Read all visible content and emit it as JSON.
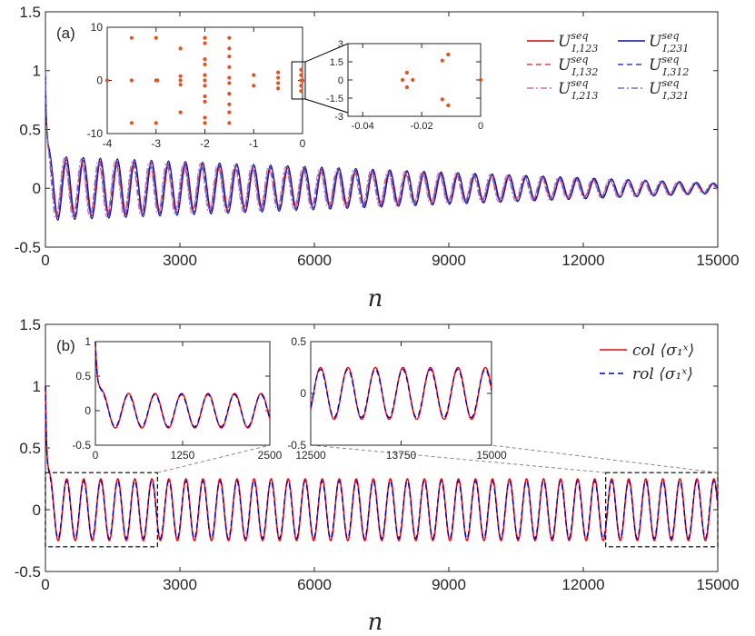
{
  "chart_data": [
    {
      "type": "line",
      "panel_label": "(a)",
      "xlabel": "n",
      "xlim": [
        0,
        15000
      ],
      "ylim": [
        -0.5,
        1.5
      ],
      "xticks": [
        "0",
        "3000",
        "6000",
        "9000",
        "12000",
        "15000"
      ],
      "yticks": [
        "-0.5",
        "0",
        "0.5",
        "1",
        "1.5"
      ],
      "legend_position": "top-right",
      "series": [
        {
          "name": "U_{I,123}^{seq}",
          "color": "#e00000",
          "style": "solid"
        },
        {
          "name": "U_{I,132}^{seq}",
          "color": "#e84040",
          "style": "dashed"
        },
        {
          "name": "U_{I,213}^{seq}",
          "color": "#d070a0",
          "style": "dashdot"
        },
        {
          "name": "U_{I,231}^{seq}",
          "color": "#1010a0",
          "style": "solid"
        },
        {
          "name": "U_{I,312}^{seq}",
          "color": "#3040e0",
          "style": "dashed"
        },
        {
          "name": "U_{I,321}^{seq}",
          "color": "#7070d0",
          "style": "dashdot"
        }
      ],
      "signal_model": {
        "initial": 1.0,
        "period": 380,
        "amplitude_start": 0.25,
        "amplitude_end": 0.04
      },
      "insets": [
        {
          "type": "scatter",
          "xlim": [
            -4,
            0
          ],
          "ylim": [
            -10,
            10
          ],
          "xticks": [
            "-4",
            "-3",
            "-2",
            "-1",
            "0"
          ],
          "yticks": [
            "-10",
            "0",
            "10"
          ],
          "color": "#e8501e",
          "points": [
            [
              -4,
              0
            ],
            [
              -3.5,
              8
            ],
            [
              -3.5,
              0
            ],
            [
              -3.5,
              -8
            ],
            [
              -3,
              8
            ],
            [
              -3,
              0
            ],
            [
              -3,
              -8
            ],
            [
              -2.97,
              0
            ],
            [
              -2.5,
              6
            ],
            [
              -2.5,
              -6
            ],
            [
              -2.5,
              0
            ],
            [
              -2.5,
              0.8
            ],
            [
              -2.5,
              -0.8
            ],
            [
              -2,
              8
            ],
            [
              -2,
              7
            ],
            [
              -2,
              4
            ],
            [
              -2,
              3
            ],
            [
              -2,
              1
            ],
            [
              -2,
              0
            ],
            [
              -2,
              -1
            ],
            [
              -2,
              -3
            ],
            [
              -2,
              -4
            ],
            [
              -2,
              -7
            ],
            [
              -2,
              -8
            ],
            [
              -1.5,
              8
            ],
            [
              -1.5,
              6
            ],
            [
              -1.5,
              4.5
            ],
            [
              -1.5,
              2.5
            ],
            [
              -1.5,
              0.5
            ],
            [
              -1.5,
              -0.5
            ],
            [
              -1.5,
              -2.5
            ],
            [
              -1.5,
              -4.5
            ],
            [
              -1.5,
              -6
            ],
            [
              -1.5,
              -8
            ],
            [
              -1,
              1
            ],
            [
              -1,
              -1
            ],
            [
              -0.5,
              1.5
            ],
            [
              -0.5,
              0.5
            ],
            [
              -0.5,
              -0.5
            ],
            [
              -0.5,
              -1.5
            ],
            [
              -0.03,
              2
            ],
            [
              -0.03,
              1
            ],
            [
              -0.03,
              0
            ],
            [
              -0.03,
              -1
            ],
            [
              -0.03,
              -2
            ],
            [
              0,
              0
            ]
          ]
        },
        {
          "type": "scatter",
          "xlim": [
            -0.045,
            0
          ],
          "ylim": [
            -3,
            3
          ],
          "xticks": [
            "-0.04",
            "-0.02",
            "0"
          ],
          "yticks": [
            "-3",
            "-1.5",
            "0",
            "1.5",
            "3"
          ],
          "color": "#e8501e",
          "points": [
            [
              -0.0265,
              0
            ],
            [
              -0.025,
              0.6
            ],
            [
              -0.025,
              -0.6
            ],
            [
              -0.023,
              0
            ],
            [
              -0.013,
              1.6
            ],
            [
              -0.013,
              -1.6
            ],
            [
              -0.011,
              2.1
            ],
            [
              -0.011,
              -2.1
            ],
            [
              0,
              0
            ]
          ]
        }
      ]
    },
    {
      "type": "line",
      "panel_label": "(b)",
      "xlabel": "n",
      "xlim": [
        0,
        15000
      ],
      "ylim": [
        -0.5,
        1.5
      ],
      "xticks": [
        "0",
        "3000",
        "6000",
        "9000",
        "12000",
        "15000"
      ],
      "yticks": [
        "-0.5",
        "0",
        "0.5",
        "1",
        "1.5"
      ],
      "legend_position": "top-right",
      "series": [
        {
          "name": "col ⟨σ₁ˣ⟩",
          "color": "#ff0000",
          "style": "solid"
        },
        {
          "name": "rol ⟨σ₁ˣ⟩",
          "color": "#0000c8",
          "style": "dashed"
        }
      ],
      "signal_model": {
        "initial": 1.0,
        "period": 380,
        "amplitude": 0.25
      },
      "zoom_boxes": [
        {
          "xlim": [
            0,
            2500
          ],
          "ylim": [
            -0.3,
            0.3
          ]
        },
        {
          "xlim": [
            12500,
            15000
          ],
          "ylim": [
            -0.3,
            0.3
          ]
        }
      ],
      "insets": [
        {
          "xlim": [
            0,
            2500
          ],
          "ylim": [
            -0.5,
            1
          ],
          "xticks": [
            "0",
            "1250",
            "2500"
          ],
          "yticks": [
            "-0.5",
            "0",
            "0.5",
            "1"
          ]
        },
        {
          "xlim": [
            12500,
            15000
          ],
          "ylim": [
            -0.5,
            0.5
          ],
          "xticks": [
            "12500",
            "13750",
            "15000"
          ],
          "yticks": [
            "-0.5",
            "0",
            "0.5"
          ]
        }
      ]
    }
  ]
}
